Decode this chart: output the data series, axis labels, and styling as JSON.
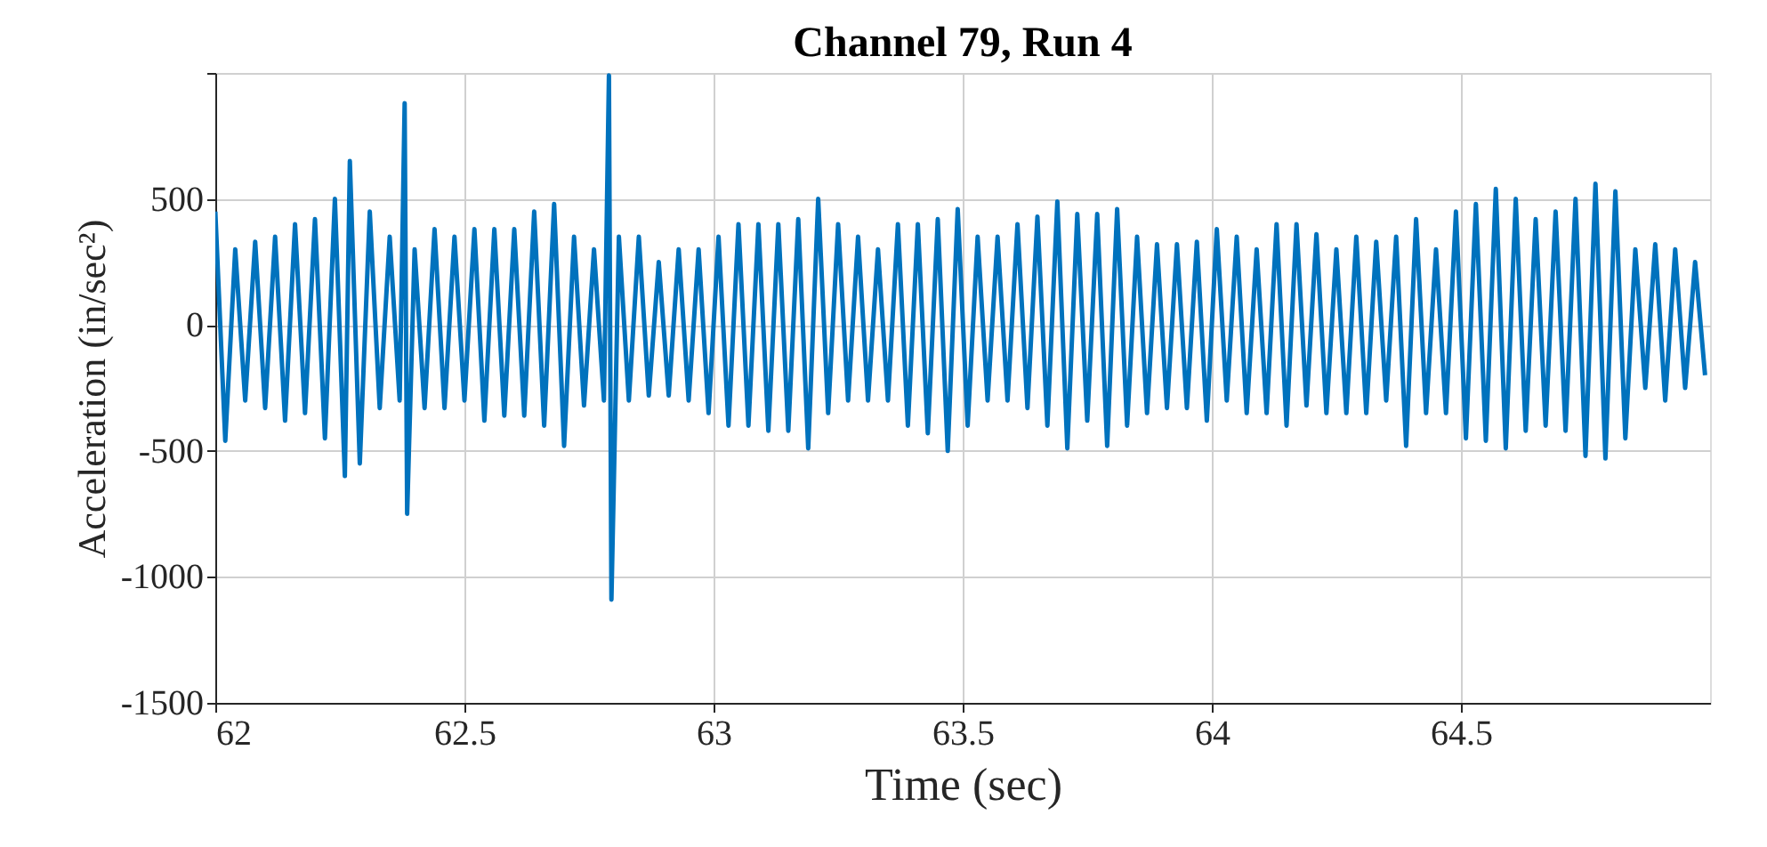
{
  "chart_data": {
    "type": "line",
    "title": "Channel 79, Run 4",
    "xlabel": "Time (sec)",
    "ylabel": "Acceleration (in/sec²)",
    "xlim": [
      62,
      65
    ],
    "xticks": [
      62,
      62.5,
      63,
      63.5,
      64,
      64.5
    ],
    "ylim": [
      -1500,
      1000
    ],
    "yticks": [
      -1500,
      -1000,
      -500,
      0,
      500,
      {
        "value": 1000,
        "label": null
      }
    ],
    "grid": true,
    "marker": "none",
    "line_style": "solid",
    "series": [
      {
        "color": "#0072bd",
        "x": [
          62.0,
          62.02,
          62.04,
          62.06,
          62.08,
          62.1,
          62.12,
          62.14,
          62.16,
          62.18,
          62.2,
          62.22,
          62.24,
          62.26,
          62.27,
          62.29,
          62.31,
          62.33,
          62.35,
          62.37,
          62.38,
          62.385,
          62.4,
          62.42,
          62.44,
          62.46,
          62.48,
          62.5,
          62.52,
          62.54,
          62.56,
          62.58,
          62.6,
          62.62,
          62.64,
          62.66,
          62.68,
          62.7,
          62.72,
          62.74,
          62.76,
          62.78,
          62.79,
          62.795,
          62.81,
          62.83,
          62.85,
          62.87,
          62.89,
          62.91,
          62.93,
          62.95,
          62.97,
          62.99,
          63.01,
          63.03,
          63.05,
          63.07,
          63.09,
          63.11,
          63.13,
          63.15,
          63.17,
          63.19,
          63.21,
          63.23,
          63.25,
          63.27,
          63.29,
          63.31,
          63.33,
          63.35,
          63.37,
          63.39,
          63.41,
          63.43,
          63.45,
          63.47,
          63.49,
          63.51,
          63.53,
          63.55,
          63.57,
          63.59,
          63.61,
          63.63,
          63.65,
          63.67,
          63.69,
          63.71,
          63.73,
          63.75,
          63.77,
          63.79,
          63.81,
          63.83,
          63.85,
          63.87,
          63.89,
          63.91,
          63.93,
          63.95,
          63.97,
          63.99,
          64.01,
          64.03,
          64.05,
          64.07,
          64.09,
          64.11,
          64.13,
          64.15,
          64.17,
          64.19,
          64.21,
          64.23,
          64.25,
          64.27,
          64.29,
          64.31,
          64.33,
          64.35,
          64.37,
          64.39,
          64.41,
          64.43,
          64.45,
          64.47,
          64.49,
          64.51,
          64.53,
          64.55,
          64.57,
          64.59,
          64.61,
          64.63,
          64.65,
          64.67,
          64.69,
          64.71,
          64.73,
          64.75,
          64.77,
          64.79,
          64.81,
          64.83,
          64.85,
          64.87,
          64.89,
          64.91,
          64.93,
          64.95,
          64.97,
          64.99
        ],
        "values": [
          450,
          -460,
          300,
          -300,
          330,
          -330,
          350,
          -380,
          400,
          -350,
          420,
          -450,
          500,
          -600,
          650,
          -550,
          450,
          -330,
          350,
          -300,
          880,
          -750,
          300,
          -330,
          380,
          -330,
          350,
          -300,
          380,
          -380,
          380,
          -360,
          380,
          -360,
          450,
          -400,
          480,
          -480,
          350,
          -320,
          300,
          -300,
          990,
          -1090,
          350,
          -300,
          350,
          -280,
          250,
          -280,
          300,
          -300,
          300,
          -350,
          350,
          -400,
          400,
          -400,
          400,
          -420,
          400,
          -420,
          420,
          -490,
          500,
          -350,
          400,
          -300,
          350,
          -300,
          300,
          -300,
          400,
          -400,
          400,
          -430,
          420,
          -500,
          460,
          -400,
          350,
          -300,
          350,
          -300,
          400,
          -330,
          430,
          -400,
          490,
          -490,
          440,
          -380,
          440,
          -480,
          460,
          -400,
          350,
          -350,
          320,
          -330,
          320,
          -330,
          330,
          -380,
          380,
          -300,
          350,
          -350,
          300,
          -350,
          400,
          -400,
          400,
          -320,
          360,
          -350,
          300,
          -350,
          350,
          -350,
          330,
          -300,
          350,
          -480,
          420,
          -350,
          300,
          -350,
          450,
          -450,
          480,
          -460,
          540,
          -490,
          500,
          -420,
          420,
          -400,
          450,
          -420,
          500,
          -520,
          560,
          -530,
          530,
          -450,
          300,
          -250,
          320,
          -300,
          300,
          -250,
          250,
          -200
        ]
      }
    ]
  }
}
